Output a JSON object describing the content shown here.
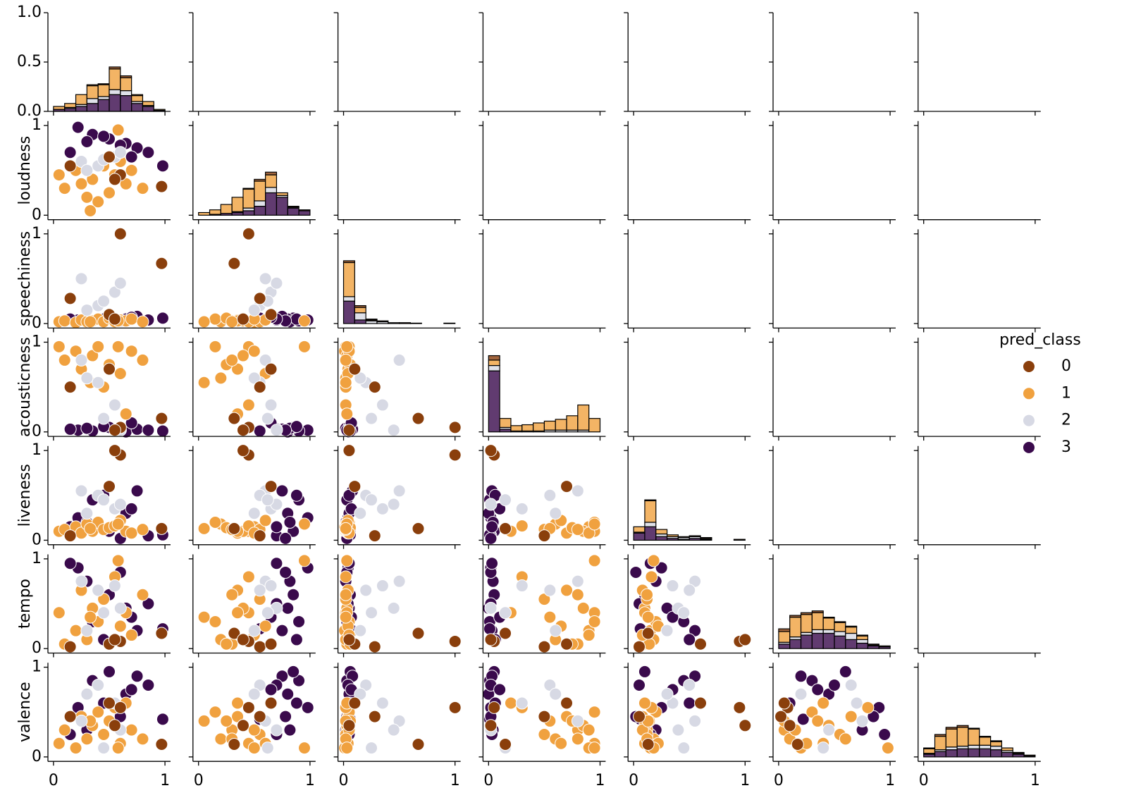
{
  "chart_data": {
    "type": "pairplot",
    "variables": [
      {
        "name": null,
        "lim": [
          0,
          1
        ],
        "ticks": [
          {
            "value": 0,
            "label": "0.0"
          },
          {
            "value": 0.5,
            "label": "0.5"
          },
          {
            "value": 1,
            "label": "1.0"
          }
        ]
      },
      {
        "name": "loudness",
        "lim": [
          -0.05,
          1.05
        ],
        "ticks": [
          0,
          1
        ]
      },
      {
        "name": "speechiness",
        "lim": [
          -0.05,
          1.05
        ],
        "ticks": [
          0,
          1
        ]
      },
      {
        "name": "acousticness",
        "lim": [
          -0.05,
          1.05
        ],
        "ticks": [
          0,
          1
        ]
      },
      {
        "name": "liveness",
        "lim": [
          -0.05,
          1.05
        ],
        "ticks": [
          0,
          1
        ]
      },
      {
        "name": "tempo",
        "lim": [
          -0.05,
          1.05
        ],
        "ticks": [
          0,
          1
        ]
      },
      {
        "name": "valence",
        "lim": [
          -0.05,
          1.05
        ],
        "ticks": [
          0,
          1
        ]
      }
    ],
    "xlim": [
      -0.05,
      1.05
    ],
    "xticks": [
      0,
      1
    ],
    "legend": {
      "title": "pred_class",
      "position": "right"
    },
    "classes": [
      0,
      1,
      2,
      3
    ],
    "colors": [
      "#8a3f0c",
      "#f0a13f",
      "#d7d9e4",
      "#3a0a4c"
    ],
    "observations": {
      "class": [
        3,
        3,
        3,
        3,
        3,
        3,
        3,
        3,
        3,
        3,
        3,
        3,
        1,
        1,
        1,
        1,
        1,
        1,
        1,
        1,
        1,
        1,
        1,
        1,
        1,
        1,
        1,
        1,
        2,
        2,
        2,
        2,
        2,
        2,
        0,
        0,
        0,
        0,
        0
      ],
      "values": [
        [
          0.22,
          0.98,
          0.04,
          0.02,
          0.25,
          0.9,
          0.55
        ],
        [
          0.35,
          0.9,
          0.03,
          0.01,
          0.45,
          0.3,
          0.85
        ],
        [
          0.5,
          0.85,
          0.06,
          0.05,
          0.1,
          0.6,
          0.95
        ],
        [
          0.65,
          0.8,
          0.05,
          0.0,
          0.3,
          0.45,
          0.7
        ],
        [
          0.75,
          0.75,
          0.08,
          0.03,
          0.55,
          0.2,
          0.9
        ],
        [
          0.85,
          0.7,
          0.04,
          0.02,
          0.05,
          0.5,
          0.8
        ],
        [
          0.98,
          0.55,
          0.06,
          0.01,
          0.06,
          0.22,
          0.42
        ],
        [
          0.3,
          0.82,
          0.02,
          0.04,
          0.2,
          0.75,
          0.3
        ],
        [
          0.45,
          0.88,
          0.05,
          0.06,
          0.5,
          0.1,
          0.6
        ],
        [
          0.6,
          0.78,
          0.03,
          0.02,
          0.02,
          0.85,
          0.45
        ],
        [
          0.15,
          0.7,
          0.05,
          0.03,
          0.15,
          0.95,
          0.25
        ],
        [
          0.7,
          0.65,
          0.07,
          0.1,
          0.35,
          0.35,
          0.75
        ],
        [
          0.05,
          0.45,
          0.02,
          0.95,
          0.1,
          0.4,
          0.15
        ],
        [
          0.1,
          0.3,
          0.03,
          0.8,
          0.12,
          0.05,
          0.3
        ],
        [
          0.2,
          0.5,
          0.01,
          0.9,
          0.15,
          0.2,
          0.1
        ],
        [
          0.25,
          0.35,
          0.04,
          0.7,
          0.08,
          0.65,
          0.45
        ],
        [
          0.3,
          0.2,
          0.02,
          0.6,
          0.18,
          0.1,
          0.2
        ],
        [
          0.35,
          0.4,
          0.03,
          0.85,
          0.1,
          0.45,
          0.35
        ],
        [
          0.4,
          0.15,
          0.05,
          0.95,
          0.2,
          0.3,
          0.5
        ],
        [
          0.45,
          0.55,
          0.02,
          0.5,
          0.12,
          0.55,
          0.25
        ],
        [
          0.5,
          0.25,
          0.06,
          0.75,
          0.14,
          0.05,
          0.4
        ],
        [
          0.55,
          0.45,
          0.02,
          0.3,
          0.16,
          0.8,
          0.55
        ],
        [
          0.6,
          0.6,
          0.04,
          0.65,
          0.22,
          0.25,
          0.15
        ],
        [
          0.65,
          0.35,
          0.03,
          0.2,
          0.1,
          0.4,
          0.6
        ],
        [
          0.7,
          0.5,
          0.05,
          0.9,
          0.08,
          0.15,
          0.3
        ],
        [
          0.8,
          0.3,
          0.02,
          0.8,
          0.12,
          0.6,
          0.2
        ],
        [
          0.58,
          0.95,
          0.03,
          0.95,
          0.18,
          0.98,
          0.1
        ],
        [
          0.33,
          0.05,
          0.02,
          0.55,
          0.13,
          0.35,
          0.4
        ],
        [
          0.25,
          0.6,
          0.5,
          0.8,
          0.55,
          0.75,
          0.4
        ],
        [
          0.4,
          0.55,
          0.2,
          0.55,
          0.5,
          0.65,
          0.8
        ],
        [
          0.55,
          0.65,
          0.35,
          0.3,
          0.35,
          0.7,
          0.6
        ],
        [
          0.6,
          0.7,
          0.45,
          0.02,
          0.4,
          0.45,
          0.3
        ],
        [
          0.3,
          0.5,
          0.15,
          0.6,
          0.3,
          0.2,
          0.7
        ],
        [
          0.45,
          0.62,
          0.25,
          0.15,
          0.45,
          0.4,
          0.1
        ],
        [
          0.6,
          0.45,
          1.0,
          0.05,
          0.95,
          0.08,
          0.55
        ],
        [
          0.97,
          0.32,
          0.67,
          0.15,
          0.13,
          0.17,
          0.14
        ],
        [
          0.15,
          0.55,
          0.28,
          0.5,
          0.05,
          0.02,
          0.45
        ],
        [
          0.5,
          0.65,
          0.1,
          0.7,
          0.6,
          0.05,
          0.6
        ],
        [
          0.55,
          0.4,
          0.05,
          0.02,
          1.0,
          0.1,
          0.35
        ]
      ]
    },
    "hist_bins": [
      0,
      0.1,
      0.2,
      0.3,
      0.4,
      0.5,
      0.6,
      0.7,
      0.8,
      0.9,
      1.0
    ],
    "histograms": [
      {
        "counts": [
          [
            0,
            0,
            0,
            0.01,
            0.01,
            0.02,
            0.02,
            0.01,
            0,
            0
          ],
          [
            0.03,
            0.04,
            0.1,
            0.13,
            0.12,
            0.21,
            0.13,
            0.06,
            0.04,
            0.01
          ],
          [
            0,
            0.01,
            0.02,
            0.05,
            0.03,
            0.05,
            0.05,
            0.02,
            0.01,
            0
          ],
          [
            0.02,
            0.03,
            0.05,
            0.08,
            0.12,
            0.17,
            0.16,
            0.08,
            0.05,
            0.01
          ]
        ]
      },
      {
        "counts": [
          [
            0,
            0,
            0,
            0,
            0.01,
            0.02,
            0.03,
            0,
            0,
            0
          ],
          [
            0.03,
            0.05,
            0.1,
            0.16,
            0.21,
            0.22,
            0.14,
            0.03,
            0.01,
            0.01
          ],
          [
            0,
            0,
            0,
            0.01,
            0.03,
            0.06,
            0.06,
            0.02,
            0.01,
            0
          ],
          [
            0,
            0.01,
            0.02,
            0.03,
            0.05,
            0.1,
            0.25,
            0.2,
            0.08,
            0.05
          ]
        ]
      },
      {
        "counts": [
          [
            0.02,
            0.02,
            0.01,
            0.01,
            0,
            0.01,
            0.005,
            0,
            0,
            0.005
          ],
          [
            0.38,
            0.06,
            0.01,
            0,
            0,
            0,
            0,
            0,
            0,
            0
          ],
          [
            0.05,
            0.08,
            0.03,
            0.02,
            0.01,
            0,
            0,
            0,
            0,
            0
          ],
          [
            0.25,
            0.04,
            0,
            0,
            0,
            0,
            0,
            0,
            0,
            0
          ]
        ]
      },
      {
        "counts": [
          [
            0.05,
            0,
            0,
            0,
            0,
            0,
            0,
            0,
            0,
            0
          ],
          [
            0.06,
            0.1,
            0.06,
            0.07,
            0.09,
            0.1,
            0.12,
            0.16,
            0.28,
            0.15
          ],
          [
            0.06,
            0.02,
            0.01,
            0.01,
            0.01,
            0.02,
            0.02,
            0.02,
            0.02,
            0
          ],
          [
            0.68,
            0.03,
            0,
            0,
            0,
            0,
            0,
            0,
            0,
            0
          ]
        ]
      },
      {
        "counts": [
          [
            0,
            0.01,
            0,
            0,
            0,
            0,
            0,
            0,
            0,
            0.01
          ],
          [
            0.06,
            0.24,
            0.05,
            0.02,
            0.01,
            0.01,
            0.01,
            0,
            0,
            0
          ],
          [
            0.01,
            0.05,
            0.03,
            0.02,
            0.02,
            0.02,
            0.01,
            0,
            0,
            0
          ],
          [
            0.08,
            0.15,
            0.04,
            0.02,
            0.01,
            0.02,
            0.01,
            0,
            0,
            0
          ]
        ]
      },
      {
        "counts": [
          [
            0.03,
            0.02,
            0.02,
            0.02,
            0.01,
            0.01,
            0.01,
            0.01,
            0,
            0
          ],
          [
            0.12,
            0.22,
            0.2,
            0.19,
            0.13,
            0.1,
            0.07,
            0.04,
            0.01,
            0.01
          ],
          [
            0.02,
            0.03,
            0.03,
            0.04,
            0.04,
            0.05,
            0.07,
            0.04,
            0.01,
            0
          ],
          [
            0.05,
            0.1,
            0.15,
            0.17,
            0.17,
            0.14,
            0.1,
            0.06,
            0.03,
            0.02
          ]
        ]
      },
      {
        "counts": [
          [
            0.01,
            0.02,
            0.02,
            0.02,
            0.01,
            0.01,
            0.01,
            0,
            0,
            0
          ],
          [
            0.05,
            0.15,
            0.2,
            0.21,
            0.18,
            0.09,
            0.05,
            0.03,
            0.01,
            0.01
          ],
          [
            0.01,
            0.02,
            0.03,
            0.03,
            0.04,
            0.04,
            0.04,
            0.02,
            0.01,
            0
          ],
          [
            0.03,
            0.06,
            0.08,
            0.09,
            0.09,
            0.09,
            0.08,
            0.05,
            0.03,
            0.01
          ]
        ]
      }
    ]
  }
}
